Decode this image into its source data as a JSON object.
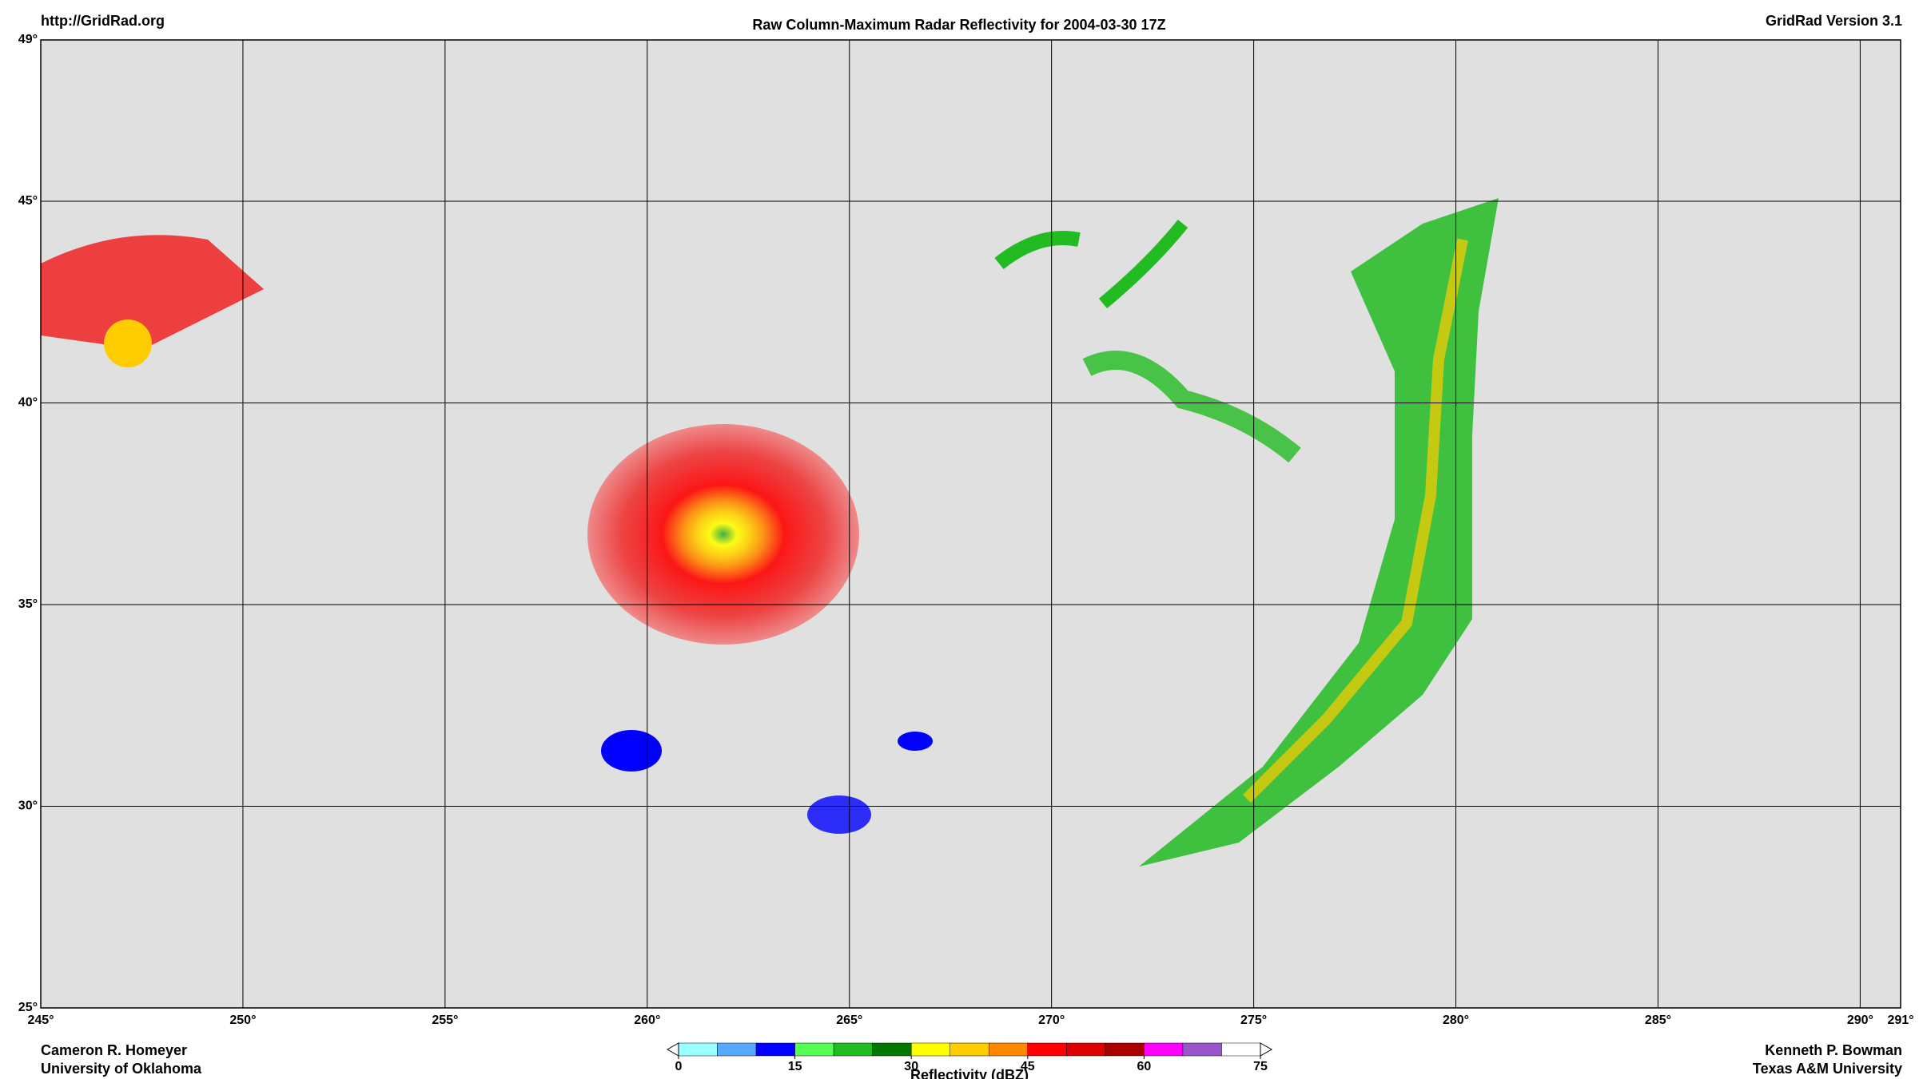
{
  "header": {
    "left": "http://GridRad.org",
    "title": "Raw Column-Maximum Radar Reflectivity for 2004-03-30 17Z",
    "right": "GridRad Version 3.1"
  },
  "map": {
    "xlim": [
      245,
      291
    ],
    "ylim": [
      25,
      49
    ],
    "xticks": [
      {
        "value": 245,
        "label": "245°"
      },
      {
        "value": 250,
        "label": "250°"
      },
      {
        "value": 255,
        "label": "255°"
      },
      {
        "value": 260,
        "label": "260°"
      },
      {
        "value": 265,
        "label": "265°"
      },
      {
        "value": 270,
        "label": "270°"
      },
      {
        "value": 275,
        "label": "275°"
      },
      {
        "value": 280,
        "label": "280°"
      },
      {
        "value": 285,
        "label": "285°"
      },
      {
        "value": 290,
        "label": "290°"
      },
      {
        "value": 291,
        "label": "291°"
      }
    ],
    "yticks": [
      {
        "value": 25,
        "label": "25°"
      },
      {
        "value": 30,
        "label": "30°"
      },
      {
        "value": 35,
        "label": "35°"
      },
      {
        "value": 40,
        "label": "40°"
      },
      {
        "value": 45,
        "label": "45°"
      },
      {
        "value": 49,
        "label": "49°"
      }
    ]
  },
  "colorbar": {
    "title": "Reflectivity (dBZ)",
    "lim": [
      0,
      75
    ],
    "ticks": [
      0,
      15,
      30,
      45,
      60,
      75
    ],
    "colors": [
      "#99ffff",
      "#55aaff",
      "#0000ff",
      "#55ff55",
      "#22bb22",
      "#007700",
      "#ffff00",
      "#ffcc00",
      "#ff8800",
      "#ff0000",
      "#dd0000",
      "#aa0000",
      "#ff00ff",
      "#9955cc",
      "#ffffff"
    ]
  },
  "footer": {
    "left": [
      "Cameron R. Homeyer",
      "University of Oklahoma"
    ],
    "right": [
      "Kenneth P. Bowman",
      "Texas A&M University"
    ]
  }
}
